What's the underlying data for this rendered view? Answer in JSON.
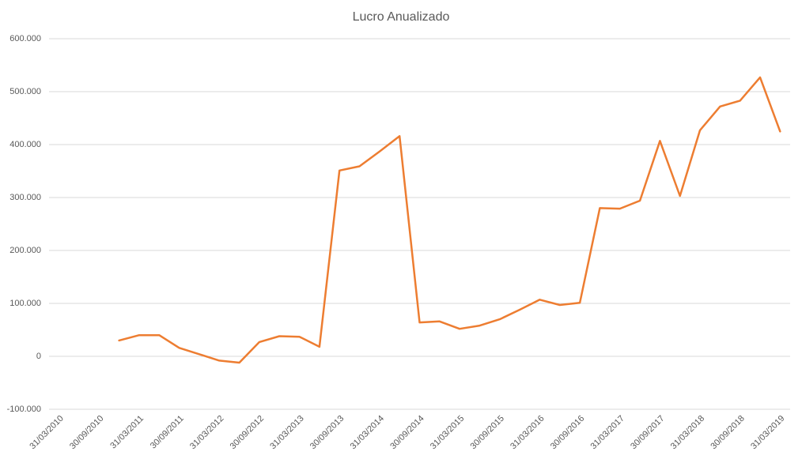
{
  "chart_data": {
    "type": "line",
    "title": "Lucro Anualizado",
    "categories": [
      "31/03/2010",
      null,
      "30/09/2010",
      null,
      "31/03/2011",
      null,
      "30/09/2011",
      null,
      "31/03/2012",
      null,
      "30/09/2012",
      null,
      "31/03/2013",
      null,
      "30/09/2013",
      null,
      "31/03/2014",
      null,
      "30/09/2014",
      null,
      "31/03/2015",
      null,
      "30/09/2015",
      null,
      "31/03/2016",
      null,
      "30/09/2016",
      null,
      "31/03/2017",
      null,
      "30/09/2017",
      null,
      "31/03/2018",
      null,
      "30/09/2018",
      null,
      "31/03/2019"
    ],
    "series": [
      {
        "color": "#ed7d31",
        "values": [
          null,
          null,
          null,
          30000,
          40000,
          40000,
          16000,
          4000,
          -8000,
          -12000,
          27000,
          38000,
          37000,
          18000,
          351000,
          359000,
          387000,
          416000,
          64000,
          66000,
          52000,
          58000,
          70000,
          88000,
          107000,
          97000,
          101000,
          280000,
          279000,
          294000,
          407000,
          303000,
          427000,
          472000,
          483000,
          527000,
          425000
        ]
      }
    ],
    "ylim": [
      -100000,
      600000
    ],
    "yticks": [
      {
        "value": -100000,
        "label": "-100.000"
      },
      0,
      {
        "value": 100000,
        "label": "100.000"
      },
      {
        "value": 200000,
        "label": "200.000"
      },
      {
        "value": 300000,
        "label": "300.000"
      },
      {
        "value": 400000,
        "label": "400.000"
      },
      {
        "value": 500000,
        "label": "500.000"
      },
      {
        "value": 600000,
        "label": "600.000"
      }
    ],
    "grid": true
  }
}
